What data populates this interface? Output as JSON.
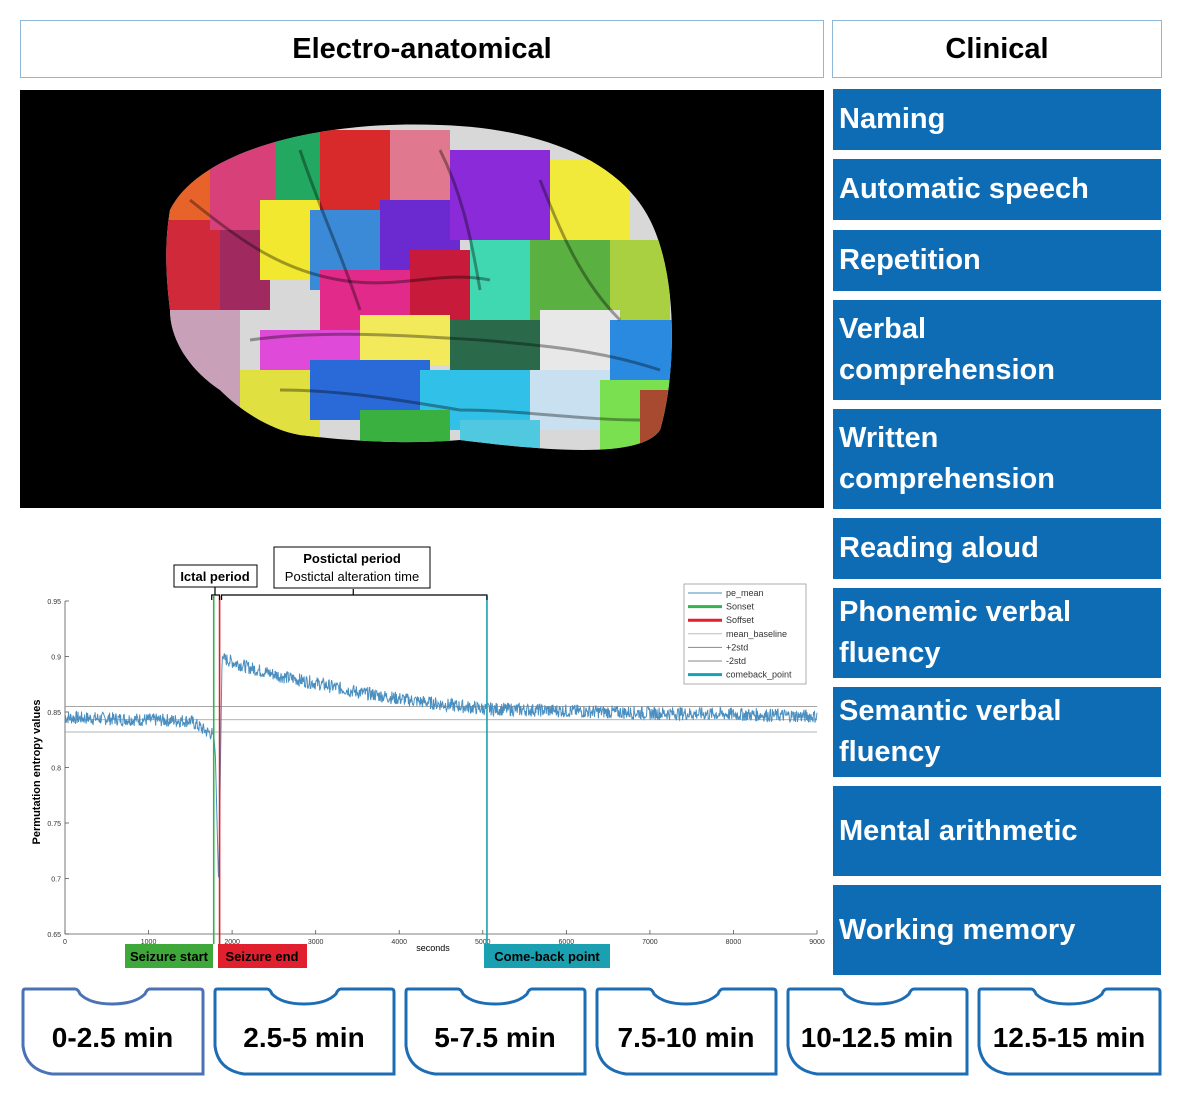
{
  "headers": {
    "left": "Electro-anatomical",
    "right": "Clinical"
  },
  "clinical_items": [
    "Naming",
    "Automatic speech",
    "Repetition",
    "Verbal\ncomprehension",
    "Written\ncomprehension",
    "Reading aloud",
    "Phonemic verbal\nfluency",
    "Semantic verbal\nfluency",
    "Mental arithmetic",
    "Working memory"
  ],
  "colors": {
    "clinical_bg": "#0e6cb5",
    "trace": "#4a8fc0",
    "onset": "#34b34a",
    "offset": "#e0202e",
    "comeback": "#1aa0b0"
  },
  "chart_data": {
    "type": "line",
    "title": "",
    "xlabel": "seconds",
    "ylabel": "Permutation entropy values",
    "xlim": [
      0,
      9000
    ],
    "ylim": [
      0.65,
      0.95
    ],
    "xticks": [
      0,
      1000,
      2000,
      3000,
      4000,
      5000,
      6000,
      7000,
      8000,
      9000
    ],
    "yticks": [
      0.65,
      0.7,
      0.75,
      0.8,
      0.85,
      0.9,
      0.95
    ],
    "legend_position": "top-right",
    "legend": [
      "pe_mean",
      "Sonset",
      "Soffset",
      "mean_baseline",
      "+2std",
      "-2std",
      "comeback_point"
    ],
    "onset": 1780,
    "offset": 1850,
    "comeback_point": 5050,
    "mean_baseline": 0.843,
    "plus_2std": 0.855,
    "minus_2std": 0.832,
    "trace_keypoints": [
      [
        0,
        0.845
      ],
      [
        1500,
        0.842
      ],
      [
        1700,
        0.832
      ],
      [
        1780,
        0.83
      ],
      [
        1800,
        0.81
      ],
      [
        1820,
        0.75
      ],
      [
        1840,
        0.69
      ],
      [
        1860,
        0.8
      ],
      [
        1880,
        0.9
      ],
      [
        1900,
        0.898
      ],
      [
        2200,
        0.89
      ],
      [
        2600,
        0.882
      ],
      [
        3000,
        0.876
      ],
      [
        3500,
        0.868
      ],
      [
        4000,
        0.862
      ],
      [
        4500,
        0.857
      ],
      [
        5000,
        0.853
      ],
      [
        6000,
        0.851
      ],
      [
        7000,
        0.849
      ],
      [
        8000,
        0.848
      ],
      [
        9000,
        0.846
      ]
    ],
    "annotations": {
      "ictal": "Ictal period",
      "postictal_title": "Postictal period",
      "postictal_sub": "Postictal alteration time",
      "seizure_start": "Seizure start",
      "seizure_end": "Seizure end",
      "comeback": "Come-back point"
    }
  },
  "time_tabs": [
    "0-2.5 min",
    "2.5-5 min",
    "5-7.5 min",
    "7.5-10 min",
    "10-12.5 min",
    "12.5-15 min"
  ]
}
